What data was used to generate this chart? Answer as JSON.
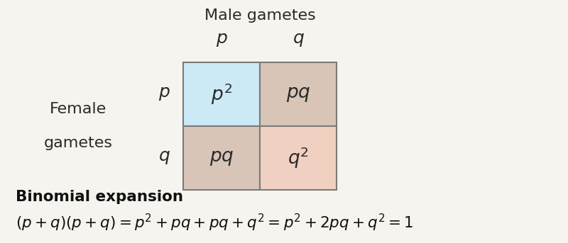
{
  "fig_width": 8.0,
  "fig_height": 3.43,
  "dpi": 100,
  "bg_color": "#f5f4ef",
  "cell_colors": {
    "top_left": "#cce9f6",
    "top_right": "#d8c5b8",
    "bottom_left": "#d8c5b8",
    "bottom_right": "#f0d0c0"
  },
  "border_color": "#7a7a7a",
  "text_color": "#2a2a2a",
  "title_male": "Male gametes",
  "title_female_line1": "Female",
  "title_female_line2": "gametes",
  "binomial_title": "Binomial expansion",
  "binomial_eq": "$(p + q)(p + q) = p^2 + pq + pq + q^2 = p^2 + 2pq + q^2 = 1$"
}
